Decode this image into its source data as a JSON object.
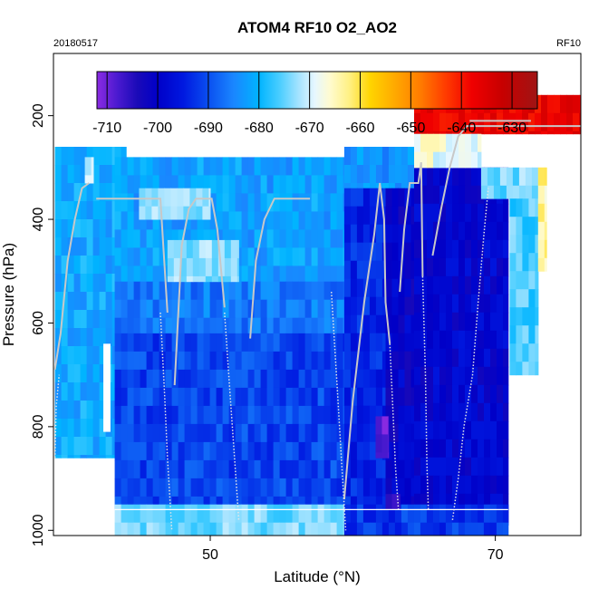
{
  "chart_data": {
    "type": "heatmap",
    "title": "ATOM4 RF10 O2_AO2",
    "date_label": "20180517",
    "flight_label": "RF10",
    "xlabel": "Latitude (°N)",
    "ylabel": "Pressure (hPa)",
    "xlim": [
      39,
      76
    ],
    "ylim": [
      1010,
      80
    ],
    "x_ticks": [
      50,
      70
    ],
    "y_ticks": [
      200,
      400,
      600,
      800,
      1000
    ],
    "colorbar": {
      "range": [
        -712,
        -625
      ],
      "ticks": [
        -710,
        -700,
        -690,
        -680,
        -670,
        -660,
        -650,
        -640,
        -630
      ],
      "stops": [
        {
          "v": -712,
          "c": "#8b2be2"
        },
        {
          "v": -708,
          "c": "#4b1ad0"
        },
        {
          "v": -704,
          "c": "#1a0ab8"
        },
        {
          "v": -700,
          "c": "#0000c8"
        },
        {
          "v": -695,
          "c": "#0018e0"
        },
        {
          "v": -690,
          "c": "#0a4ff0"
        },
        {
          "v": -685,
          "c": "#1a86ff"
        },
        {
          "v": -680,
          "c": "#00b4ff"
        },
        {
          "v": -676,
          "c": "#48cdff"
        },
        {
          "v": -672,
          "c": "#a8e4ff"
        },
        {
          "v": -669,
          "c": "#e6f7ff"
        },
        {
          "v": -666,
          "c": "#fffbd0"
        },
        {
          "v": -662,
          "c": "#fff080"
        },
        {
          "v": -658,
          "c": "#ffd400"
        },
        {
          "v": -653,
          "c": "#ffa800"
        },
        {
          "v": -648,
          "c": "#ff7a00"
        },
        {
          "v": -643,
          "c": "#ff3a00"
        },
        {
          "v": -638,
          "c": "#f00000"
        },
        {
          "v": -632,
          "c": "#c80000"
        },
        {
          "v": -625,
          "c": "#a01414"
        }
      ]
    },
    "regions": [
      {
        "lat": [
          39.1,
          43.3
        ],
        "p": [
          260,
          860
        ],
        "v": -681
      },
      {
        "lat": [
          43.3,
          44.1
        ],
        "p": [
          260,
          280
        ],
        "v": -681
      },
      {
        "lat": [
          43.3,
          59.4
        ],
        "p": [
          280,
          520
        ],
        "v": -682
      },
      {
        "lat": [
          59.4,
          66.5
        ],
        "p": [
          260,
          340
        ],
        "v": -683
      },
      {
        "lat": [
          43.3,
          59.4
        ],
        "p": [
          520,
          620
        ],
        "v": -686
      },
      {
        "lat": [
          43.3,
          59.4
        ],
        "p": [
          620,
          960
        ],
        "v": -691
      },
      {
        "lat": [
          59.4,
          62.3
        ],
        "p": [
          340,
          960
        ],
        "v": -694
      },
      {
        "lat": [
          62.3,
          64.3
        ],
        "p": [
          340,
          960
        ],
        "v": -700
      },
      {
        "lat": [
          64.3,
          70.9
        ],
        "p": [
          300,
          990
        ],
        "v": -699
      },
      {
        "lat": [
          43.3,
          59.4
        ],
        "p": [
          950,
          1010
        ],
        "v": -674
      },
      {
        "lat": [
          59.4,
          70.9
        ],
        "p": [
          950,
          1010
        ],
        "v": -692
      },
      {
        "lat": [
          64.3,
          76.0
        ],
        "p": [
          160,
          235
        ],
        "v": -637
      },
      {
        "lat": [
          64.3,
          69.0
        ],
        "p": [
          235,
          300
        ],
        "v": -668
      },
      {
        "lat": [
          69.0,
          73.0
        ],
        "p": [
          300,
          360
        ],
        "v": -674
      },
      {
        "lat": [
          71.0,
          73.0
        ],
        "p": [
          360,
          700
        ],
        "v": -676
      },
      {
        "lat": [
          73.0,
          73.6
        ],
        "p": [
          300,
          500
        ],
        "v": -664
      },
      {
        "lat": [
          61.6,
          62.5
        ],
        "p": [
          780,
          860
        ],
        "v": -709
      },
      {
        "lat": [
          62.3,
          63.3
        ],
        "p": [
          930,
          960
        ],
        "v": -708
      },
      {
        "lat": [
          45.0,
          50.0
        ],
        "p": [
          340,
          400
        ],
        "v": -672
      },
      {
        "lat": [
          47.0,
          52.0
        ],
        "p": [
          440,
          520
        ],
        "v": -673
      },
      {
        "lat": [
          41.2,
          41.8
        ],
        "p": [
          280,
          330
        ],
        "v": -672
      }
    ],
    "gap": {
      "lat": [
        42.5,
        43.0
      ],
      "p": [
        640,
        810
      ]
    },
    "track": {
      "solid": [
        [
          [
            39.1,
            690
          ],
          [
            39.5,
            620
          ],
          [
            40.0,
            480
          ],
          [
            40.5,
            400
          ],
          [
            41.0,
            340
          ],
          [
            41.5,
            330
          ]
        ],
        [
          [
            42.0,
            360
          ],
          [
            46.5,
            360
          ],
          [
            47.0,
            580
          ]
        ],
        [
          [
            47.5,
            720
          ],
          [
            48.0,
            450
          ],
          [
            48.5,
            380
          ],
          [
            49.0,
            360
          ],
          [
            50.1,
            360
          ],
          [
            50.5,
            420
          ],
          [
            51.0,
            570
          ]
        ],
        [
          [
            52.8,
            630
          ],
          [
            53.2,
            480
          ],
          [
            53.8,
            400
          ],
          [
            54.5,
            360
          ],
          [
            57.0,
            360
          ]
        ],
        [
          [
            59.4,
            940
          ],
          [
            60.0,
            750
          ],
          [
            60.8,
            560
          ],
          [
            61.5,
            430
          ],
          [
            61.9,
            330
          ],
          [
            62.2,
            400
          ],
          [
            62.3,
            560
          ],
          [
            62.6,
            640
          ]
        ],
        [
          [
            63.3,
            540
          ],
          [
            63.6,
            420
          ],
          [
            64.0,
            330
          ],
          [
            64.6,
            330
          ],
          [
            64.8,
            290
          ],
          [
            64.9,
            510
          ]
        ],
        [
          [
            65.6,
            470
          ],
          [
            66.2,
            380
          ],
          [
            66.8,
            300
          ],
          [
            67.4,
            240
          ],
          [
            68.0,
            220
          ],
          [
            76.0,
            220
          ]
        ],
        [
          [
            68.2,
            210
          ],
          [
            72.5,
            210
          ]
        ]
      ],
      "dotted": [
        [
          [
            39.1,
            860
          ],
          [
            39.2,
            760
          ],
          [
            39.4,
            700
          ]
        ],
        [
          [
            46.5,
            580
          ],
          [
            46.8,
            740
          ],
          [
            47.0,
            860
          ],
          [
            47.3,
            1000
          ]
        ],
        [
          [
            51.0,
            580
          ],
          [
            51.4,
            740
          ],
          [
            51.7,
            860
          ],
          [
            52.0,
            980
          ]
        ],
        [
          [
            58.5,
            540
          ],
          [
            58.9,
            720
          ],
          [
            59.2,
            860
          ],
          [
            59.5,
            1000
          ]
        ],
        [
          [
            62.6,
            640
          ],
          [
            62.8,
            760
          ],
          [
            63.0,
            880
          ],
          [
            63.2,
            960
          ]
        ],
        [
          [
            64.9,
            510
          ],
          [
            65.1,
            700
          ],
          [
            65.2,
            870
          ],
          [
            65.3,
            960
          ]
        ],
        [
          [
            67.0,
            980
          ],
          [
            67.4,
            900
          ],
          [
            67.8,
            800
          ],
          [
            68.4,
            700
          ],
          [
            68.8,
            560
          ],
          [
            69.2,
            430
          ],
          [
            69.5,
            340
          ]
        ]
      ],
      "bottom": [
        [
          43.3,
          960
        ],
        [
          70.9,
          960
        ]
      ]
    }
  }
}
